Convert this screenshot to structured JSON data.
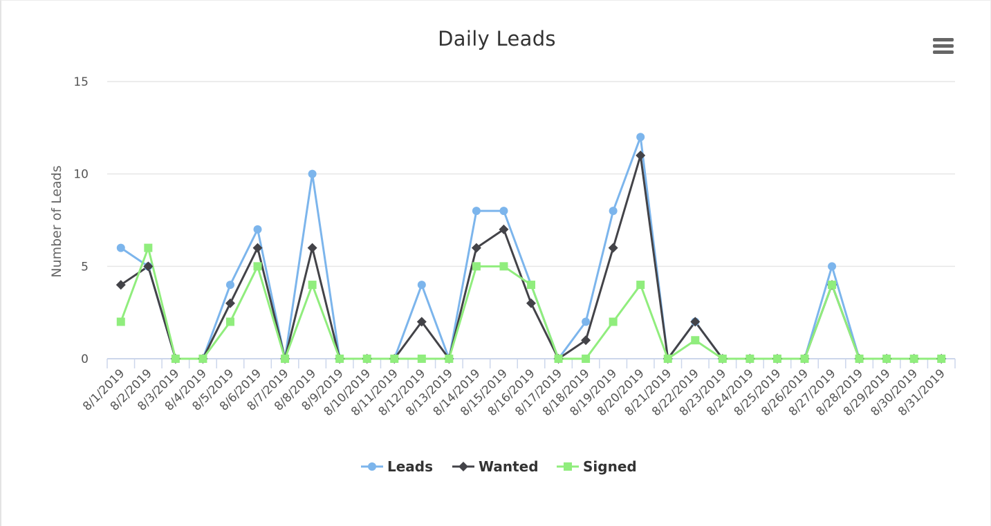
{
  "toolbar": {
    "menu_icon": "hamburger-menu-icon"
  },
  "chart_data": {
    "type": "line",
    "title": "Daily Leads",
    "xlabel": "",
    "ylabel": "Number of Leads",
    "ylim": [
      0,
      15
    ],
    "yticks": [
      0,
      5,
      10,
      15
    ],
    "grid": true,
    "legend_position": "bottom-center",
    "categories": [
      "8/1/2019",
      "8/2/2019",
      "8/3/2019",
      "8/4/2019",
      "8/5/2019",
      "8/6/2019",
      "8/7/2019",
      "8/8/2019",
      "8/9/2019",
      "8/10/2019",
      "8/11/2019",
      "8/12/2019",
      "8/13/2019",
      "8/14/2019",
      "8/15/2019",
      "8/16/2019",
      "8/17/2019",
      "8/18/2019",
      "8/19/2019",
      "8/20/2019",
      "8/21/2019",
      "8/22/2019",
      "8/23/2019",
      "8/24/2019",
      "8/25/2019",
      "8/26/2019",
      "8/27/2019",
      "8/28/2019",
      "8/29/2019",
      "8/30/2019",
      "8/31/2019"
    ],
    "series": [
      {
        "name": "Leads",
        "color": "#7cb5ec",
        "marker": "circle",
        "values": [
          6,
          5,
          0,
          0,
          4,
          7,
          0,
          10,
          0,
          0,
          0,
          4,
          0,
          8,
          8,
          4,
          0,
          2,
          8,
          12,
          0,
          2,
          0,
          0,
          0,
          0,
          5,
          0,
          0,
          0,
          0
        ]
      },
      {
        "name": "Wanted",
        "color": "#434348",
        "marker": "diamond",
        "values": [
          4,
          5,
          0,
          0,
          3,
          6,
          0,
          6,
          0,
          0,
          0,
          2,
          0,
          6,
          7,
          3,
          0,
          1,
          6,
          11,
          0,
          2,
          0,
          0,
          0,
          0,
          4,
          0,
          0,
          0,
          0
        ]
      },
      {
        "name": "Signed",
        "color": "#90ed7d",
        "marker": "square",
        "values": [
          2,
          6,
          0,
          0,
          2,
          5,
          0,
          4,
          0,
          0,
          0,
          0,
          0,
          5,
          5,
          4,
          0,
          0,
          2,
          4,
          0,
          1,
          0,
          0,
          0,
          0,
          4,
          0,
          0,
          0,
          0
        ]
      }
    ]
  }
}
